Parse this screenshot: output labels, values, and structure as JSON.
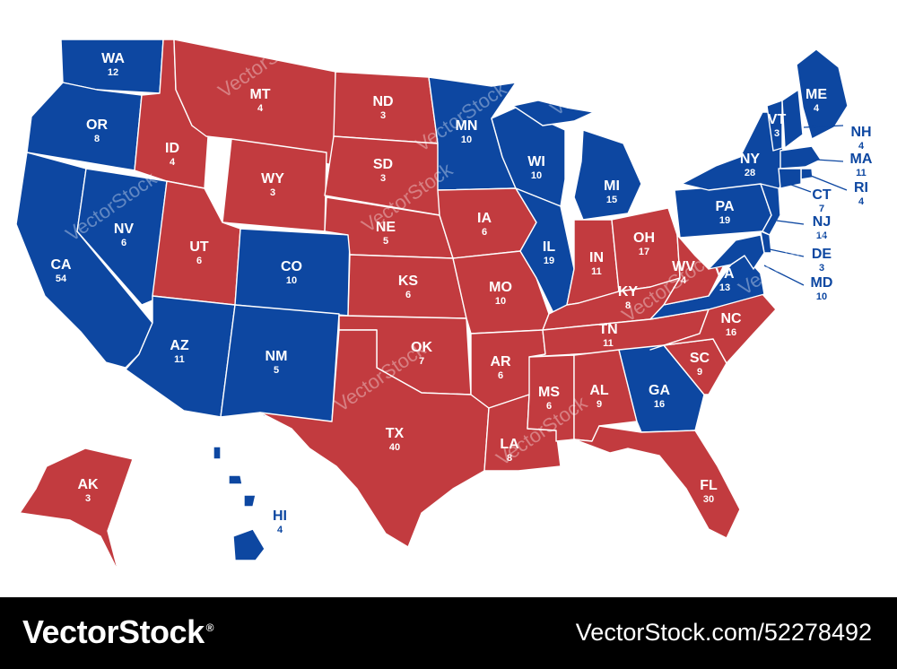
{
  "colors": {
    "dem": "#0d47a1",
    "rep": "#c23b3f",
    "border": "#ffffff",
    "footer": "#000000"
  },
  "states": [
    {
      "abbr": "WA",
      "votes": "12",
      "party": "dem"
    },
    {
      "abbr": "OR",
      "votes": "8",
      "party": "dem"
    },
    {
      "abbr": "CA",
      "votes": "54",
      "party": "dem"
    },
    {
      "abbr": "NV",
      "votes": "6",
      "party": "dem"
    },
    {
      "abbr": "ID",
      "votes": "4",
      "party": "rep"
    },
    {
      "abbr": "MT",
      "votes": "4",
      "party": "rep"
    },
    {
      "abbr": "WY",
      "votes": "3",
      "party": "rep"
    },
    {
      "abbr": "UT",
      "votes": "6",
      "party": "rep"
    },
    {
      "abbr": "AZ",
      "votes": "11",
      "party": "dem"
    },
    {
      "abbr": "CO",
      "votes": "10",
      "party": "dem"
    },
    {
      "abbr": "NM",
      "votes": "5",
      "party": "dem"
    },
    {
      "abbr": "ND",
      "votes": "3",
      "party": "rep"
    },
    {
      "abbr": "SD",
      "votes": "3",
      "party": "rep"
    },
    {
      "abbr": "NE",
      "votes": "5",
      "party": "rep"
    },
    {
      "abbr": "KS",
      "votes": "6",
      "party": "rep"
    },
    {
      "abbr": "OK",
      "votes": "7",
      "party": "rep"
    },
    {
      "abbr": "TX",
      "votes": "40",
      "party": "rep"
    },
    {
      "abbr": "MN",
      "votes": "10",
      "party": "dem"
    },
    {
      "abbr": "IA",
      "votes": "6",
      "party": "rep"
    },
    {
      "abbr": "MO",
      "votes": "10",
      "party": "rep"
    },
    {
      "abbr": "AR",
      "votes": "6",
      "party": "rep"
    },
    {
      "abbr": "LA",
      "votes": "8",
      "party": "rep"
    },
    {
      "abbr": "WI",
      "votes": "10",
      "party": "dem"
    },
    {
      "abbr": "IL",
      "votes": "19",
      "party": "dem"
    },
    {
      "abbr": "MI",
      "votes": "15",
      "party": "dem"
    },
    {
      "abbr": "IN",
      "votes": "11",
      "party": "rep"
    },
    {
      "abbr": "OH",
      "votes": "17",
      "party": "rep"
    },
    {
      "abbr": "KY",
      "votes": "8",
      "party": "rep"
    },
    {
      "abbr": "TN",
      "votes": "11",
      "party": "rep"
    },
    {
      "abbr": "MS",
      "votes": "6",
      "party": "rep"
    },
    {
      "abbr": "AL",
      "votes": "9",
      "party": "rep"
    },
    {
      "abbr": "GA",
      "votes": "16",
      "party": "dem"
    },
    {
      "abbr": "FL",
      "votes": "30",
      "party": "rep"
    },
    {
      "abbr": "SC",
      "votes": "9",
      "party": "rep"
    },
    {
      "abbr": "NC",
      "votes": "16",
      "party": "rep"
    },
    {
      "abbr": "VA",
      "votes": "13",
      "party": "dem"
    },
    {
      "abbr": "WV",
      "votes": "4",
      "party": "rep"
    },
    {
      "abbr": "PA",
      "votes": "19",
      "party": "dem"
    },
    {
      "abbr": "NY",
      "votes": "28",
      "party": "dem"
    },
    {
      "abbr": "VT",
      "votes": "3",
      "party": "dem"
    },
    {
      "abbr": "ME",
      "votes": "4",
      "party": "dem"
    },
    {
      "abbr": "NH",
      "votes": "4",
      "party": "dem"
    },
    {
      "abbr": "MA",
      "votes": "11",
      "party": "dem"
    },
    {
      "abbr": "RI",
      "votes": "4",
      "party": "dem"
    },
    {
      "abbr": "CT",
      "votes": "7",
      "party": "dem"
    },
    {
      "abbr": "NJ",
      "votes": "14",
      "party": "dem"
    },
    {
      "abbr": "DE",
      "votes": "3",
      "party": "dem"
    },
    {
      "abbr": "MD",
      "votes": "10",
      "party": "dem"
    },
    {
      "abbr": "AK",
      "votes": "3",
      "party": "rep"
    },
    {
      "abbr": "HI",
      "votes": "4",
      "party": "dem"
    }
  ],
  "watermark": "VectorStock",
  "footer": {
    "logo": "VectorStock",
    "reg": "®",
    "url": "VectorStock.com/52278492"
  }
}
